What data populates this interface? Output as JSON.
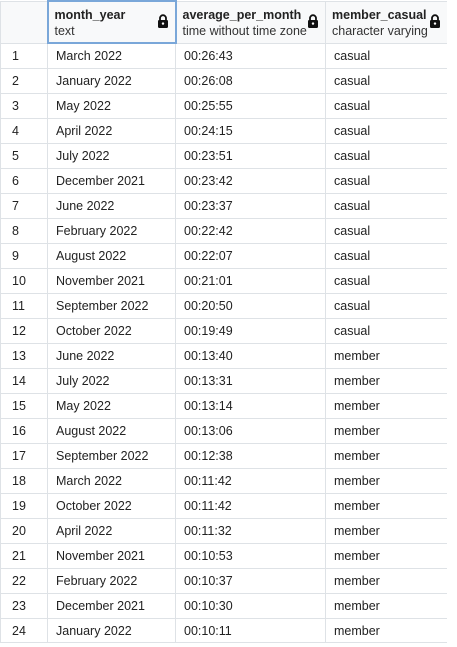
{
  "columns": [
    {
      "name": "month_year",
      "type": "text"
    },
    {
      "name": "average_per_month",
      "type": "time without time zone"
    },
    {
      "name": "member_casual",
      "type": "character varying"
    }
  ],
  "rows": [
    {
      "num": "1",
      "month_year": "March 2022",
      "average_per_month": "00:26:43",
      "member_casual": "casual"
    },
    {
      "num": "2",
      "month_year": "January 2022",
      "average_per_month": "00:26:08",
      "member_casual": "casual"
    },
    {
      "num": "3",
      "month_year": "May 2022",
      "average_per_month": "00:25:55",
      "member_casual": "casual"
    },
    {
      "num": "4",
      "month_year": "April 2022",
      "average_per_month": "00:24:15",
      "member_casual": "casual"
    },
    {
      "num": "5",
      "month_year": "July 2022",
      "average_per_month": "00:23:51",
      "member_casual": "casual"
    },
    {
      "num": "6",
      "month_year": "December 2021",
      "average_per_month": "00:23:42",
      "member_casual": "casual"
    },
    {
      "num": "7",
      "month_year": "June 2022",
      "average_per_month": "00:23:37",
      "member_casual": "casual"
    },
    {
      "num": "8",
      "month_year": "February 2022",
      "average_per_month": "00:22:42",
      "member_casual": "casual"
    },
    {
      "num": "9",
      "month_year": "August 2022",
      "average_per_month": "00:22:07",
      "member_casual": "casual"
    },
    {
      "num": "10",
      "month_year": "November 2021",
      "average_per_month": "00:21:01",
      "member_casual": "casual"
    },
    {
      "num": "11",
      "month_year": "September 2022",
      "average_per_month": "00:20:50",
      "member_casual": "casual"
    },
    {
      "num": "12",
      "month_year": "October 2022",
      "average_per_month": "00:19:49",
      "member_casual": "casual"
    },
    {
      "num": "13",
      "month_year": "June 2022",
      "average_per_month": "00:13:40",
      "member_casual": "member"
    },
    {
      "num": "14",
      "month_year": "July 2022",
      "average_per_month": "00:13:31",
      "member_casual": "member"
    },
    {
      "num": "15",
      "month_year": "May 2022",
      "average_per_month": "00:13:14",
      "member_casual": "member"
    },
    {
      "num": "16",
      "month_year": "August 2022",
      "average_per_month": "00:13:06",
      "member_casual": "member"
    },
    {
      "num": "17",
      "month_year": "September 2022",
      "average_per_month": "00:12:38",
      "member_casual": "member"
    },
    {
      "num": "18",
      "month_year": "March 2022",
      "average_per_month": "00:11:42",
      "member_casual": "member"
    },
    {
      "num": "19",
      "month_year": "October 2022",
      "average_per_month": "00:11:42",
      "member_casual": "member"
    },
    {
      "num": "20",
      "month_year": "April 2022",
      "average_per_month": "00:11:32",
      "member_casual": "member"
    },
    {
      "num": "21",
      "month_year": "November 2021",
      "average_per_month": "00:10:53",
      "member_casual": "member"
    },
    {
      "num": "22",
      "month_year": "February 2022",
      "average_per_month": "00:10:37",
      "member_casual": "member"
    },
    {
      "num": "23",
      "month_year": "December 2021",
      "average_per_month": "00:10:30",
      "member_casual": "member"
    },
    {
      "num": "24",
      "month_year": "January 2022",
      "average_per_month": "00:10:11",
      "member_casual": "member"
    }
  ],
  "icons": {
    "column_lock": "lock-icon"
  },
  "colors": {
    "header_bg": "#f8f9fa",
    "grid_line": "#dee2e6",
    "active_header_border": "#7aa7d9"
  }
}
